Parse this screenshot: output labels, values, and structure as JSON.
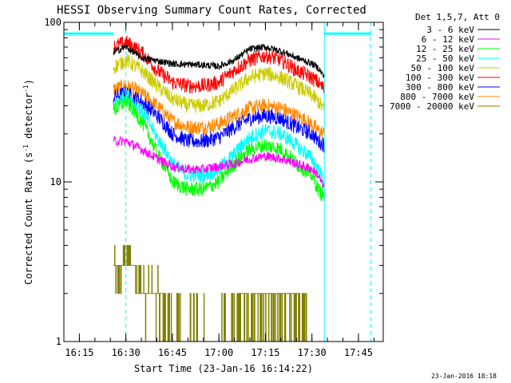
{
  "chart_data": {
    "type": "line",
    "title": "HESSI Observing Summary Count Rates, Corrected",
    "xlabel": "Start Time (23-Jan-16 16:14:22)",
    "ylabel": "Corrected Count Rate (s",
    "ylabel_sup1": "-1",
    "ylabel_mid": " detector",
    "ylabel_sup2": "-1",
    "ylabel_end": ")",
    "x_axis": {
      "min": "16:10",
      "max": "17:53",
      "ticks": [
        "16:15",
        "16:30",
        "16:45",
        "17:00",
        "17:15",
        "17:30",
        "17:45"
      ],
      "tick_minutes": [
        975,
        990,
        1005,
        1020,
        1035,
        1050,
        1065
      ],
      "range_minutes": [
        970,
        1073
      ]
    },
    "y_axis": {
      "scale": "log",
      "range": [
        1,
        100
      ],
      "ticks": [
        1,
        10,
        100
      ],
      "tick_labels": [
        "1",
        "10",
        "100"
      ]
    },
    "legend_header": "Det 1,5,7, Att 0",
    "legend_position": "top-right, outside plot",
    "series": [
      {
        "name": "3 - 6 keV",
        "color": "#000000",
        "times": [
          "16:26",
          "16:30",
          "16:35",
          "16:45",
          "16:55",
          "17:00",
          "17:05",
          "17:10",
          "17:15",
          "17:20",
          "17:25",
          "17:30",
          "17:32",
          "17:34"
        ],
        "values": [
          65,
          70,
          60,
          55,
          54,
          53,
          58,
          68,
          70,
          66,
          60,
          55,
          52,
          45
        ]
      },
      {
        "name": "6 - 12 keV",
        "color": "#ff00ff",
        "times": [
          "16:26",
          "16:30",
          "16:35",
          "16:40",
          "16:45",
          "16:50",
          "16:55",
          "17:00",
          "17:05",
          "17:10",
          "17:15",
          "17:20",
          "17:25",
          "17:30",
          "17:32",
          "17:34"
        ],
        "values": [
          18,
          18,
          16,
          14,
          12.5,
          12,
          12,
          12.5,
          13,
          14,
          14.5,
          14,
          13,
          12,
          11,
          9
        ]
      },
      {
        "name": "12 - 25 keV",
        "color": "#00ff00",
        "times": [
          "16:26",
          "16:30",
          "16:35",
          "16:40",
          "16:45",
          "16:50",
          "16:55",
          "17:00",
          "17:05",
          "17:10",
          "17:15",
          "17:20",
          "17:25",
          "17:30",
          "17:32",
          "17:34"
        ],
        "values": [
          28,
          32,
          24,
          15,
          10,
          9,
          9,
          10,
          13,
          16,
          17,
          16,
          13,
          11,
          9,
          8
        ]
      },
      {
        "name": "25 - 50 keV",
        "color": "#00ffff",
        "times": [
          "16:26",
          "16:30",
          "16:35",
          "16:40",
          "16:45",
          "16:50",
          "16:55",
          "17:00",
          "17:05",
          "17:10",
          "17:15",
          "17:20",
          "17:25",
          "17:30",
          "17:32",
          "17:34"
        ],
        "values": [
          30,
          35,
          28,
          19,
          13,
          11,
          11,
          12,
          15,
          19,
          21,
          20,
          17,
          14,
          12,
          10
        ]
      },
      {
        "name": "50 - 100 keV",
        "color": "#cccc00",
        "times": [
          "16:26",
          "16:30",
          "16:35",
          "16:40",
          "16:45",
          "16:50",
          "16:55",
          "17:00",
          "17:05",
          "17:10",
          "17:15",
          "17:20",
          "17:25",
          "17:30",
          "17:32",
          "17:34"
        ],
        "values": [
          52,
          58,
          50,
          40,
          33,
          30,
          30,
          32,
          38,
          45,
          48,
          45,
          40,
          35,
          32,
          28
        ]
      },
      {
        "name": "100 - 300 keV",
        "color": "#ff0000",
        "times": [
          "16:26",
          "16:30",
          "16:35",
          "16:40",
          "16:45",
          "16:50",
          "16:55",
          "17:00",
          "17:05",
          "17:10",
          "17:15",
          "17:20",
          "17:25",
          "17:30",
          "17:32",
          "17:34"
        ],
        "values": [
          70,
          75,
          65,
          50,
          42,
          40,
          40,
          42,
          50,
          58,
          62,
          58,
          50,
          45,
          42,
          38
        ]
      },
      {
        "name": "300 - 800 keV",
        "color": "#0000ff",
        "times": [
          "16:26",
          "16:30",
          "16:35",
          "16:40",
          "16:45",
          "16:50",
          "16:55",
          "17:00",
          "17:05",
          "17:10",
          "17:15",
          "17:20",
          "17:25",
          "17:30",
          "17:32",
          "17:34"
        ],
        "values": [
          34,
          36,
          32,
          26,
          20,
          18,
          18,
          19,
          22,
          25,
          26,
          25,
          22,
          20,
          18,
          17
        ]
      },
      {
        "name": "800 - 7000 keV",
        "color": "#ff8800",
        "times": [
          "16:26",
          "16:30",
          "16:35",
          "16:40",
          "16:45",
          "16:50",
          "16:55",
          "17:00",
          "17:05",
          "17:10",
          "17:15",
          "17:20",
          "17:25",
          "17:30",
          "17:32",
          "17:34"
        ],
        "values": [
          38,
          40,
          36,
          30,
          24,
          22,
          22,
          23,
          26,
          29,
          30,
          29,
          26,
          23,
          21,
          20
        ]
      },
      {
        "name": "7000 - 20000 keV",
        "color": "#808000",
        "times": [
          "16:26",
          "16:28",
          "16:30",
          "16:32",
          "16:34",
          "16:36",
          "16:38",
          "16:40",
          "16:42",
          "16:44",
          "16:48",
          "16:55",
          "17:00",
          "17:05",
          "17:08",
          "17:10",
          "17:12",
          "17:14",
          "17:16",
          "17:18",
          "17:20",
          "17:22",
          "17:24",
          "17:26",
          "17:28",
          "17:30"
        ],
        "values": [
          3,
          2.5,
          3.5,
          3,
          2.5,
          2,
          2,
          2,
          1.5,
          1.3,
          1,
          1,
          1,
          1,
          2,
          1.5,
          2,
          1.7,
          2,
          1.5,
          2,
          1.7,
          2,
          1.5,
          1.2,
          1
        ]
      }
    ],
    "attenuator_markers": [
      {
        "start": "16:10",
        "end": "16:26",
        "level": 85,
        "color": "#00ffff"
      },
      {
        "start": "17:34",
        "end": "17:49",
        "level": 85,
        "color": "#00ffff"
      }
    ],
    "vertical_markers": [
      {
        "time": "16:10",
        "style": "solid",
        "color": "#00ffff"
      },
      {
        "time": "16:30",
        "style": "dashed",
        "color": "#00ffff"
      },
      {
        "time": "17:34",
        "style": "solid",
        "color": "#00ffff"
      },
      {
        "time": "17:49",
        "style": "dashed",
        "color": "#00ffff"
      }
    ],
    "grid": false
  },
  "footer": {
    "date_stamp": "23-Jan-2016 18:18"
  }
}
